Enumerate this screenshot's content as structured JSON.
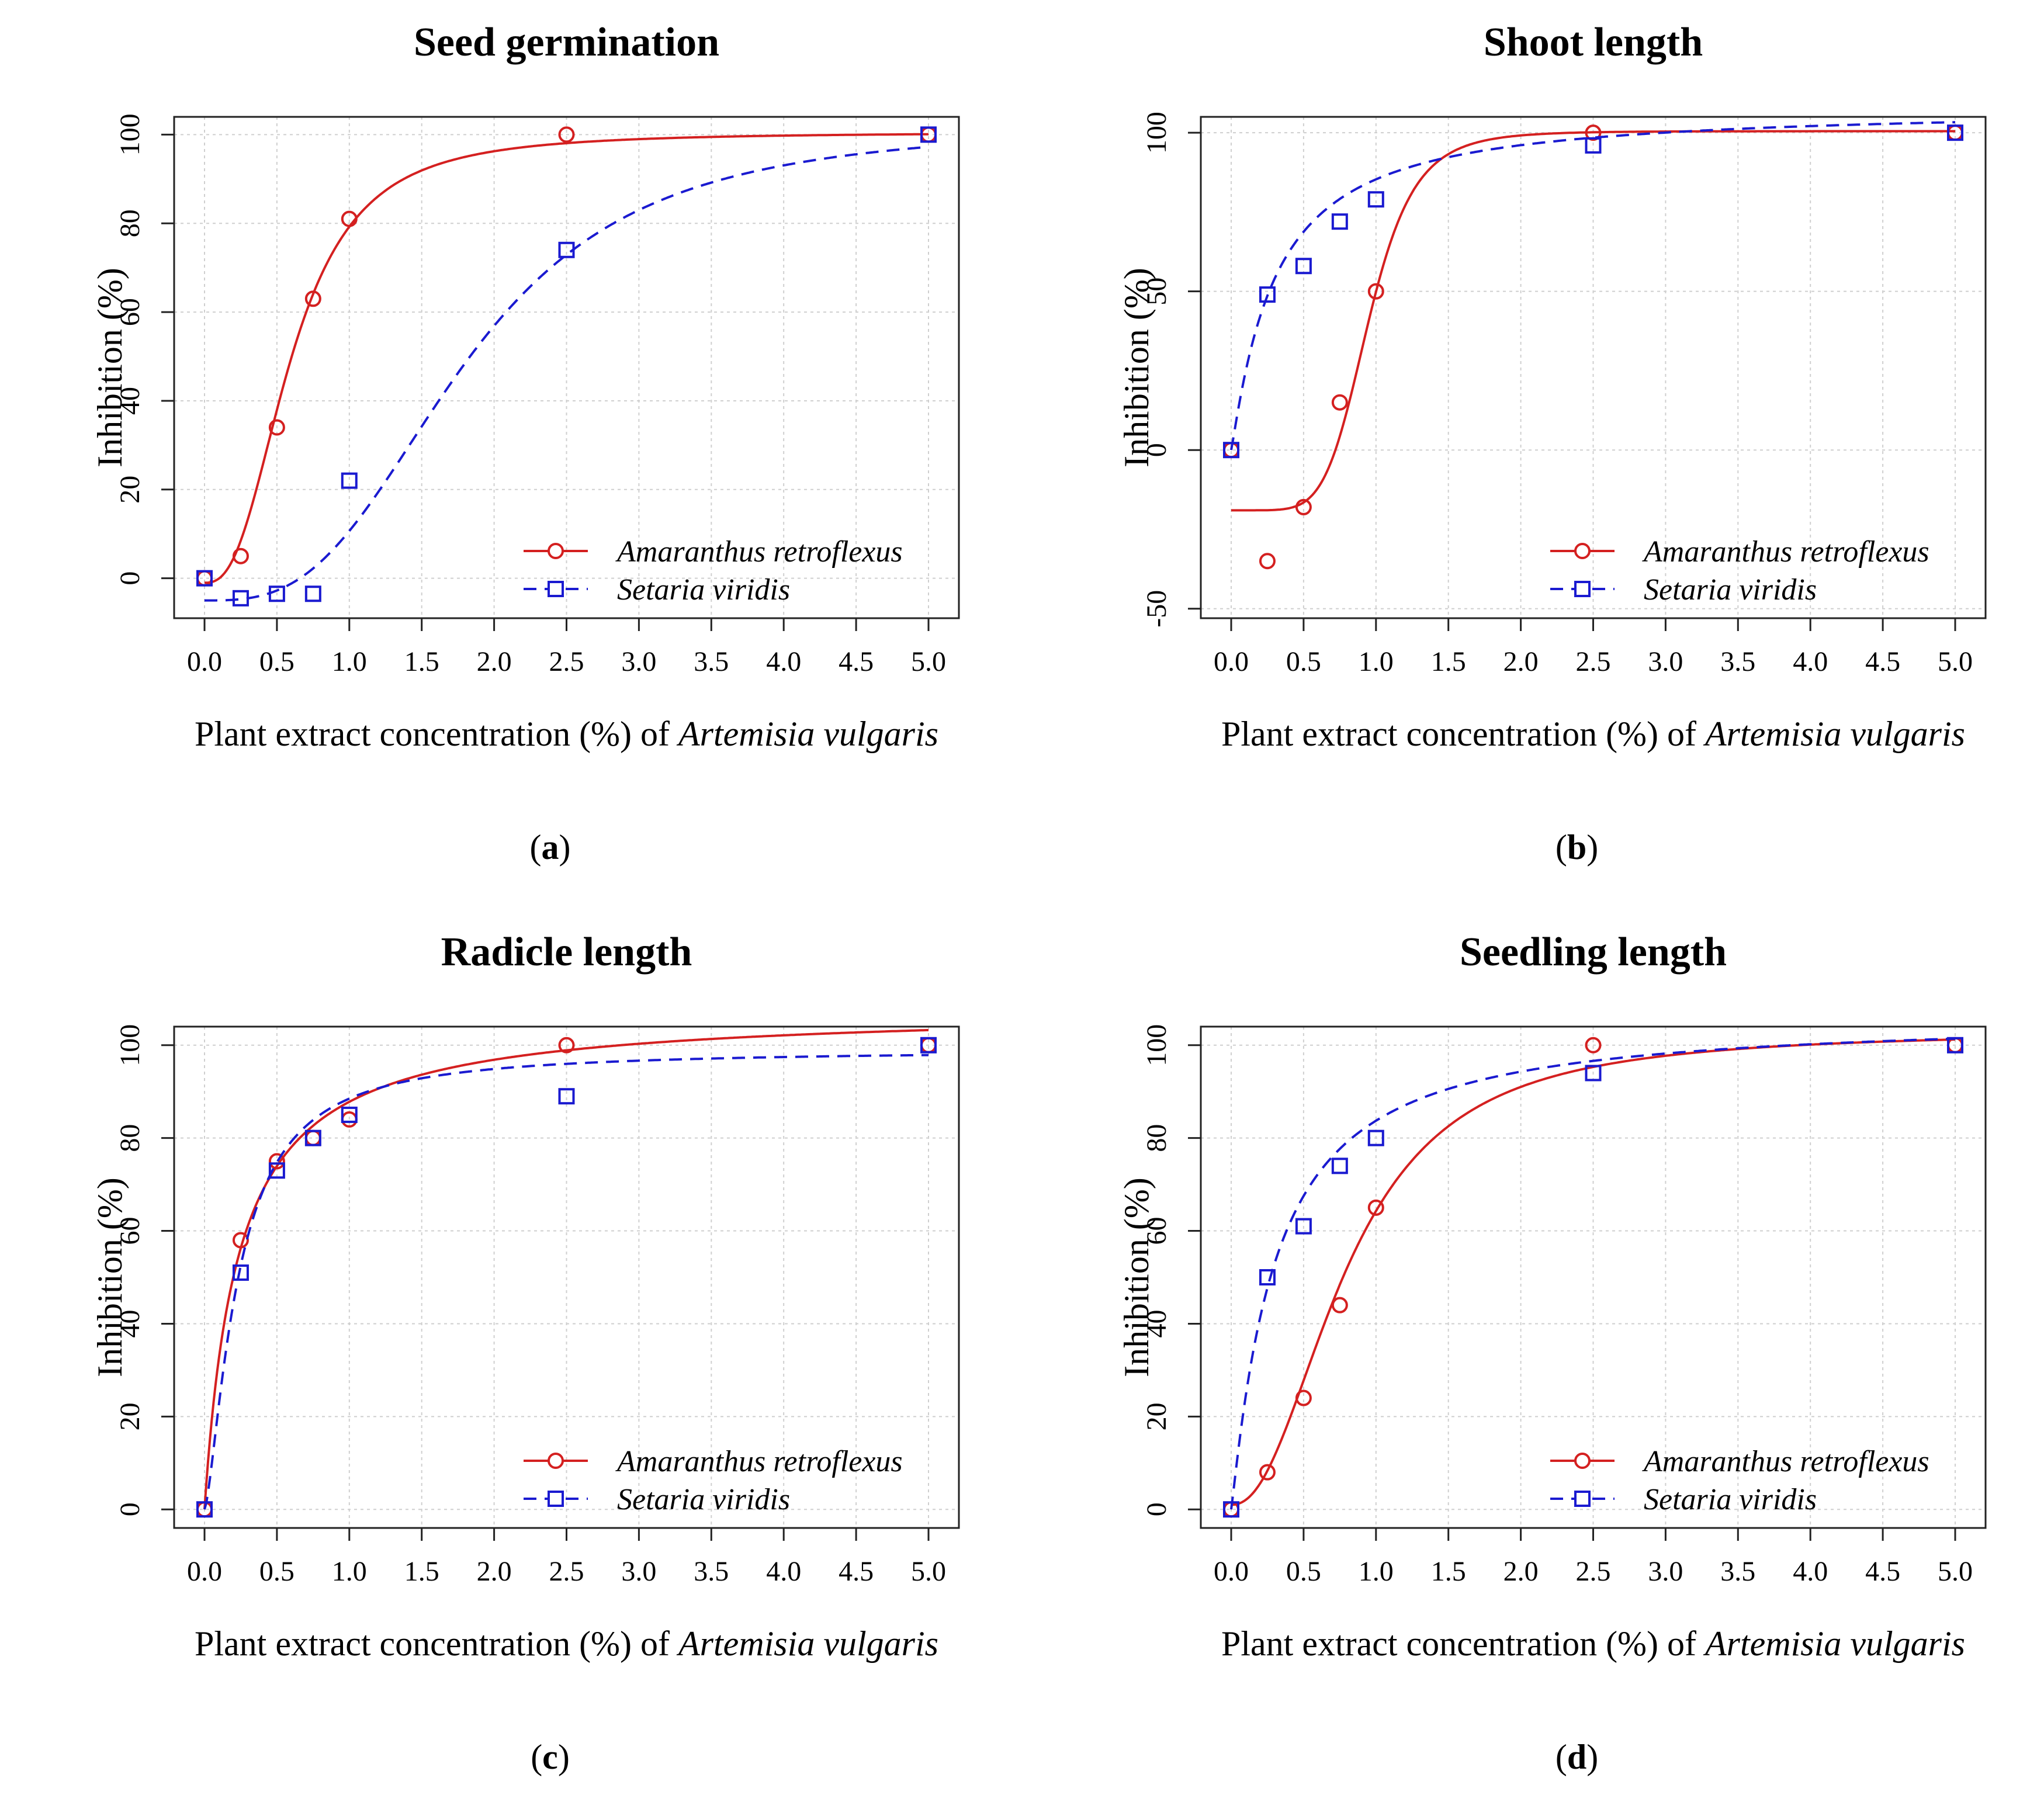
{
  "figure": {
    "xlabel_prefix": "Plant extract concentration (%) of ",
    "xlabel_species": "Artemisia vulgaris",
    "ylabel": "Inhibition (%)",
    "legend": [
      "Amaranthus retroflexus",
      "Setaria viridis"
    ],
    "colors": {
      "amaranthus": "#d42020",
      "setaria": "#1a1ad0",
      "grid": "#cfcfcf"
    }
  },
  "chart_data": [
    {
      "type": "line",
      "panel": "a",
      "title": "Seed germination",
      "xlabel": "Plant extract concentration (%) of Artemisia vulgaris",
      "ylabel": "Inhibition (%)",
      "xlim": [
        0,
        5
      ],
      "ylim": [
        -9,
        104
      ],
      "xticks": [
        0.0,
        0.5,
        1.0,
        1.5,
        2.0,
        2.5,
        3.0,
        3.5,
        4.0,
        4.5,
        5.0
      ],
      "xtick_labels": [
        "0.0",
        "0.5",
        "1.0",
        "1.5",
        "2.0",
        "2.5",
        "3.0",
        "3.5",
        "4.0",
        "4.5",
        "5.0"
      ],
      "yticks": [
        0,
        20,
        40,
        60,
        80,
        100
      ],
      "ytick_labels": [
        "0",
        "20",
        "40",
        "60",
        "80",
        "100"
      ],
      "legend_position": "bottom-right",
      "series": [
        {
          "name": "Amaranthus retroflexus",
          "style": "solid",
          "marker": "circle",
          "x": [
            0,
            0.25,
            0.5,
            0.75,
            1.0,
            2.5,
            5.0
          ],
          "y": [
            0,
            5,
            34,
            63,
            81,
            100,
            100
          ],
          "fit": {
            "model": "loglogistic",
            "lower": -1,
            "upper": 100.5,
            "ec50": 0.6,
            "slope": 2.6
          }
        },
        {
          "name": "Setaria viridis",
          "style": "dashed",
          "marker": "square",
          "x": [
            0,
            0.25,
            0.5,
            0.75,
            1.0,
            2.5,
            5.0
          ],
          "y": [
            0,
            -4.5,
            -3.5,
            -3.5,
            22,
            74,
            100
          ],
          "fit": {
            "model": "loglogistic",
            "lower": -5,
            "upper": 102,
            "ec50": 1.8,
            "slope": 3.0
          }
        }
      ]
    },
    {
      "type": "line",
      "panel": "b",
      "title": "Shoot length",
      "xlabel": "Plant extract concentration (%) of Artemisia vulgaris",
      "ylabel": "Inhibition (%)",
      "xlim": [
        0,
        5
      ],
      "ylim": [
        -53,
        105
      ],
      "xticks": [
        0.0,
        0.5,
        1.0,
        1.5,
        2.0,
        2.5,
        3.0,
        3.5,
        4.0,
        4.5,
        5.0
      ],
      "xtick_labels": [
        "0.0",
        "0.5",
        "1.0",
        "1.5",
        "2.0",
        "2.5",
        "3.0",
        "3.5",
        "4.0",
        "4.5",
        "5.0"
      ],
      "yticks": [
        -50,
        0,
        50,
        100
      ],
      "ytick_labels": [
        "-50",
        "0",
        "50",
        "100"
      ],
      "legend_position": "bottom-right",
      "series": [
        {
          "name": "Amaranthus retroflexus",
          "style": "solid",
          "marker": "circle",
          "x": [
            0,
            0.25,
            0.5,
            0.75,
            1.0,
            2.5,
            5.0
          ],
          "y": [
            0,
            -35,
            -18,
            15,
            50,
            100,
            100
          ],
          "fit": {
            "model": "loglogistic",
            "lower": -19,
            "upper": 100.5,
            "ec50": 0.95,
            "slope": 6.0
          }
        },
        {
          "name": "Setaria viridis",
          "style": "dashed",
          "marker": "square",
          "x": [
            0,
            0.25,
            0.5,
            0.75,
            1.0,
            2.5,
            5.0
          ],
          "y": [
            0,
            49,
            58,
            72,
            79,
            96,
            100
          ],
          "fit": {
            "model": "loglogistic",
            "lower": 0,
            "upper": 108,
            "ec50": 0.3,
            "slope": 1.1
          }
        }
      ]
    },
    {
      "type": "line",
      "panel": "c",
      "title": "Radicle length",
      "xlabel": "Plant extract concentration (%) of Artemisia vulgaris",
      "ylabel": "Inhibition (%)",
      "xlim": [
        0,
        5
      ],
      "ylim": [
        -4,
        104
      ],
      "xticks": [
        0.0,
        0.5,
        1.0,
        1.5,
        2.0,
        2.5,
        3.0,
        3.5,
        4.0,
        4.5,
        5.0
      ],
      "xtick_labels": [
        "0.0",
        "0.5",
        "1.0",
        "1.5",
        "2.0",
        "2.5",
        "3.0",
        "3.5",
        "4.0",
        "4.5",
        "5.0"
      ],
      "yticks": [
        0,
        20,
        40,
        60,
        80,
        100
      ],
      "ytick_labels": [
        "0",
        "20",
        "40",
        "60",
        "80",
        "100"
      ],
      "legend_position": "bottom-right",
      "series": [
        {
          "name": "Amaranthus retroflexus",
          "style": "solid",
          "marker": "circle",
          "x": [
            0,
            0.25,
            0.5,
            0.75,
            1.0,
            2.5,
            5.0
          ],
          "y": [
            0,
            58,
            75,
            80,
            84,
            100,
            100
          ],
          "fit": {
            "model": "loglogistic",
            "lower": 0,
            "upper": 108,
            "ec50": 0.23,
            "slope": 1.0
          }
        },
        {
          "name": "Setaria viridis",
          "style": "dashed",
          "marker": "square",
          "x": [
            0,
            0.25,
            0.5,
            0.75,
            1.0,
            2.5,
            5.0
          ],
          "y": [
            0,
            51,
            73,
            80,
            85,
            89,
            100
          ],
          "fit": {
            "model": "loglogistic",
            "lower": 0,
            "upper": 99,
            "ec50": 0.23,
            "slope": 1.45
          }
        }
      ]
    },
    {
      "type": "line",
      "panel": "d",
      "title": "Seedling length",
      "xlabel": "Plant extract concentration (%) of Artemisia vulgaris",
      "ylabel": "Inhibition (%)",
      "xlim": [
        0,
        5
      ],
      "ylim": [
        -4,
        104
      ],
      "xticks": [
        0.0,
        0.5,
        1.0,
        1.5,
        2.0,
        2.5,
        3.0,
        3.5,
        4.0,
        4.5,
        5.0
      ],
      "xtick_labels": [
        "0.0",
        "0.5",
        "1.0",
        "1.5",
        "2.0",
        "2.5",
        "3.0",
        "3.5",
        "4.0",
        "4.5",
        "5.0"
      ],
      "yticks": [
        0,
        20,
        40,
        60,
        80,
        100
      ],
      "ytick_labels": [
        "0",
        "20",
        "40",
        "60",
        "80",
        "100"
      ],
      "legend_position": "bottom-right",
      "series": [
        {
          "name": "Amaranthus retroflexus",
          "style": "solid",
          "marker": "circle",
          "x": [
            0,
            0.25,
            0.5,
            0.75,
            1.0,
            2.5,
            5.0
          ],
          "y": [
            0,
            8,
            24,
            44,
            65,
            100,
            100
          ],
          "fit": {
            "model": "loglogistic",
            "lower": 1,
            "upper": 103,
            "ec50": 0.8,
            "slope": 2.2
          }
        },
        {
          "name": "Setaria viridis",
          "style": "dashed",
          "marker": "square",
          "x": [
            0,
            0.25,
            0.5,
            0.75,
            1.0,
            2.5,
            5.0
          ],
          "y": [
            0,
            50,
            61,
            74,
            80,
            94,
            100
          ],
          "fit": {
            "model": "loglogistic",
            "lower": 0,
            "upper": 106,
            "ec50": 0.3,
            "slope": 1.1
          }
        }
      ]
    }
  ],
  "panel_labels": [
    "a",
    "b",
    "c",
    "d"
  ]
}
